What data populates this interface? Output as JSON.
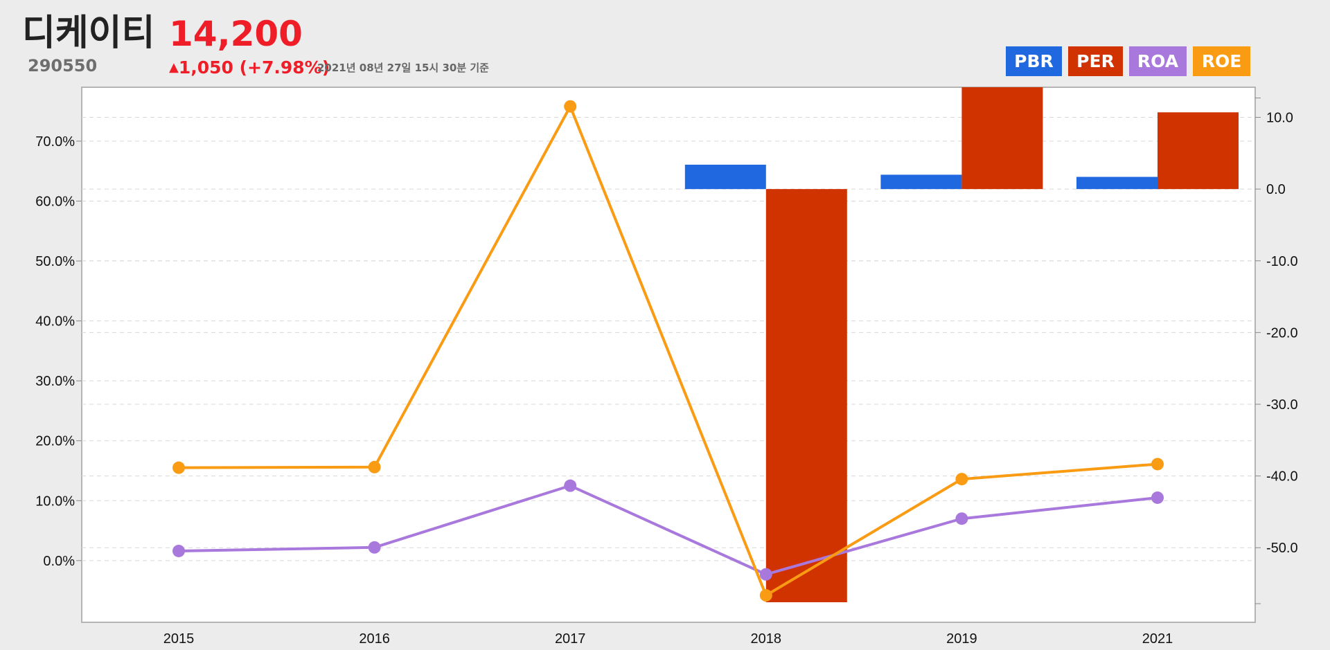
{
  "stock": {
    "name": "디케이티",
    "code": "290550",
    "price": "14,200",
    "change_arrow": "▲",
    "change_text": "1,050 (+7.98%)",
    "as_of": "2021년 08년 27일 15시 30분 기준"
  },
  "colors": {
    "up": "#ef1d27",
    "PBR": "#2068e0",
    "PER": "#d03200",
    "ROA": "#a878dc",
    "ROE": "#fa9b14"
  },
  "legend": {
    "pbr": "PBR",
    "per": "PER",
    "roa": "ROA",
    "roe": "ROE"
  },
  "chart_data": {
    "type": "bar",
    "categories": [
      "2015",
      "2016",
      "2017",
      "2018",
      "2019",
      "2021"
    ],
    "series": [
      {
        "name": "PBR",
        "type": "bar",
        "axis": "right",
        "values": [
          null,
          null,
          null,
          3.4,
          2.0,
          1.7
        ]
      },
      {
        "name": "PER",
        "type": "bar",
        "axis": "right",
        "values": [
          null,
          null,
          null,
          -57.6,
          14.2,
          10.7
        ]
      },
      {
        "name": "ROA",
        "type": "line",
        "axis": "left",
        "values": [
          1.6,
          2.2,
          12.5,
          -2.3,
          7.0,
          10.5
        ]
      },
      {
        "name": "ROE",
        "type": "line",
        "axis": "left",
        "values": [
          15.5,
          15.6,
          75.8,
          -5.8,
          13.6,
          16.1
        ]
      }
    ],
    "left_axis": {
      "ticks": [
        "0.0%",
        "10.0%",
        "20.0%",
        "30.0%",
        "40.0%",
        "50.0%",
        "60.0%",
        "70.0%"
      ],
      "ylim": [
        -10.3,
        79.0
      ]
    },
    "right_axis": {
      "ticks": [
        "-50.0",
        "-40.0",
        "-30.0",
        "-20.0",
        "-10.0",
        "0.0",
        "10.0"
      ],
      "ylim": [
        -60.4,
        14.2
      ]
    },
    "grid": true,
    "legend_position": "top-right"
  }
}
